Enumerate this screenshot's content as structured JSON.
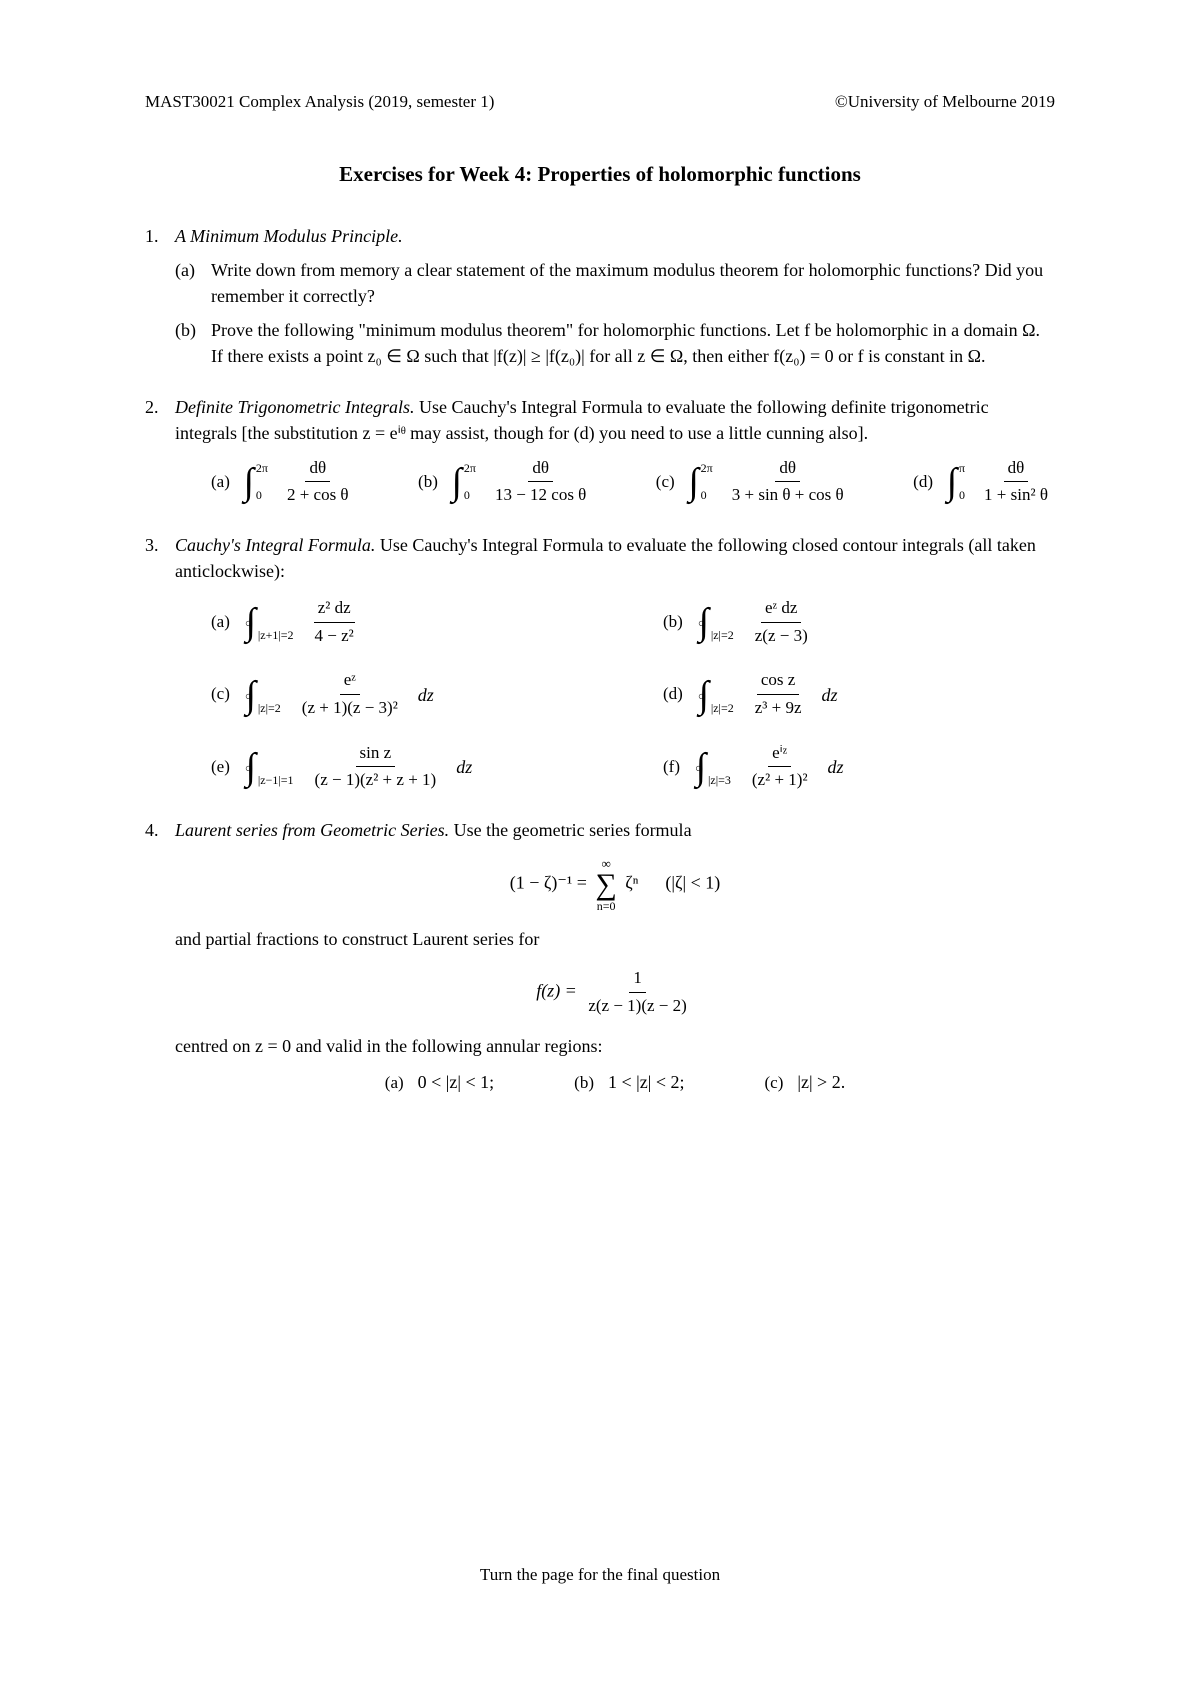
{
  "header": {
    "left": "MAST30021 Complex Analysis (2019, semester 1)",
    "right": "©University of Melbourne 2019"
  },
  "title": "Exercises for Week 4: Properties of holomorphic functions",
  "q1": {
    "title": "A Minimum Modulus Principle.",
    "a": "Write down from memory a clear statement of the maximum modulus theorem for holomorphic functions? Did you remember it correctly?",
    "b": "Prove the following \"minimum modulus theorem\" for holomorphic functions. Let f be holomorphic in a domain Ω. If there exists a point z₀ ∈ Ω such that |f(z)| ≥ |f(z₀)| for all z ∈ Ω, then either f(z₀) = 0 or f is constant in Ω."
  },
  "q2": {
    "title": "Definite Trigonometric Integrals.",
    "intro_tail": " Use Cauchy's Integral Formula to evaluate the following definite trigonometric integrals [the substitution z = eⁱᶿ may assist, though for (d) you need to use a little cunning also].",
    "items": [
      {
        "label": "(a)",
        "lower": "0",
        "upper": "2π",
        "num": "dθ",
        "den": "2 + cos θ"
      },
      {
        "label": "(b)",
        "lower": "0",
        "upper": "2π",
        "num": "dθ",
        "den": "13 − 12 cos θ"
      },
      {
        "label": "(c)",
        "lower": "0",
        "upper": "2π",
        "num": "dθ",
        "den": "3 + sin θ + cos θ"
      },
      {
        "label": "(d)",
        "lower": "0",
        "upper": "π",
        "num": "dθ",
        "den": "1 + sin² θ"
      }
    ]
  },
  "q3": {
    "title": "Cauchy's Integral Formula.",
    "intro_tail": " Use Cauchy's Integral Formula to evaluate the following closed contour integrals (all taken anticlockwise):",
    "items": [
      {
        "label": "(a)",
        "sub": "|z+1|=2",
        "num": "z² dz",
        "den": "4 − z²",
        "trail": ""
      },
      {
        "label": "(b)",
        "sub": "|z|=2",
        "num": "eᶻ dz",
        "den": "z(z − 3)",
        "trail": ""
      },
      {
        "label": "(c)",
        "sub": "|z|=2",
        "num": "eᶻ",
        "den": "(z + 1)(z − 3)²",
        "trail": "dz"
      },
      {
        "label": "(d)",
        "sub": "|z|=2",
        "num": "cos z",
        "den": "z³ + 9z",
        "trail": "dz"
      },
      {
        "label": "(e)",
        "sub": "|z−1|=1",
        "num": "sin z",
        "den": "(z − 1)(z² + z + 1)",
        "trail": "dz"
      },
      {
        "label": "(f)",
        "sub": "|z|=3",
        "num": "eⁱᶻ",
        "den": "(z² + 1)²",
        "trail": "dz"
      }
    ]
  },
  "q4": {
    "title": "Laurent series from Geometric Series.",
    "intro_tail": " Use the geometric series formula",
    "formula_lhs": "(1 − ζ)⁻¹ = ",
    "sum_top": "∞",
    "sum_bot": "n=0",
    "sum_body": "ζⁿ",
    "formula_cond": "(|ζ| < 1)",
    "mid_text": "and partial fractions to construct Laurent series for",
    "f_lhs": "f(z) = ",
    "f_num": "1",
    "f_den": "z(z − 1)(z − 2)",
    "post_text": "centred on z = 0 and valid in the following annular regions:",
    "regions": [
      {
        "label": "(a)",
        "text": "0 < |z| < 1;"
      },
      {
        "label": "(b)",
        "text": "1 < |z| < 2;"
      },
      {
        "label": "(c)",
        "text": "|z| > 2."
      }
    ]
  },
  "footer": "Turn the page for the final question"
}
